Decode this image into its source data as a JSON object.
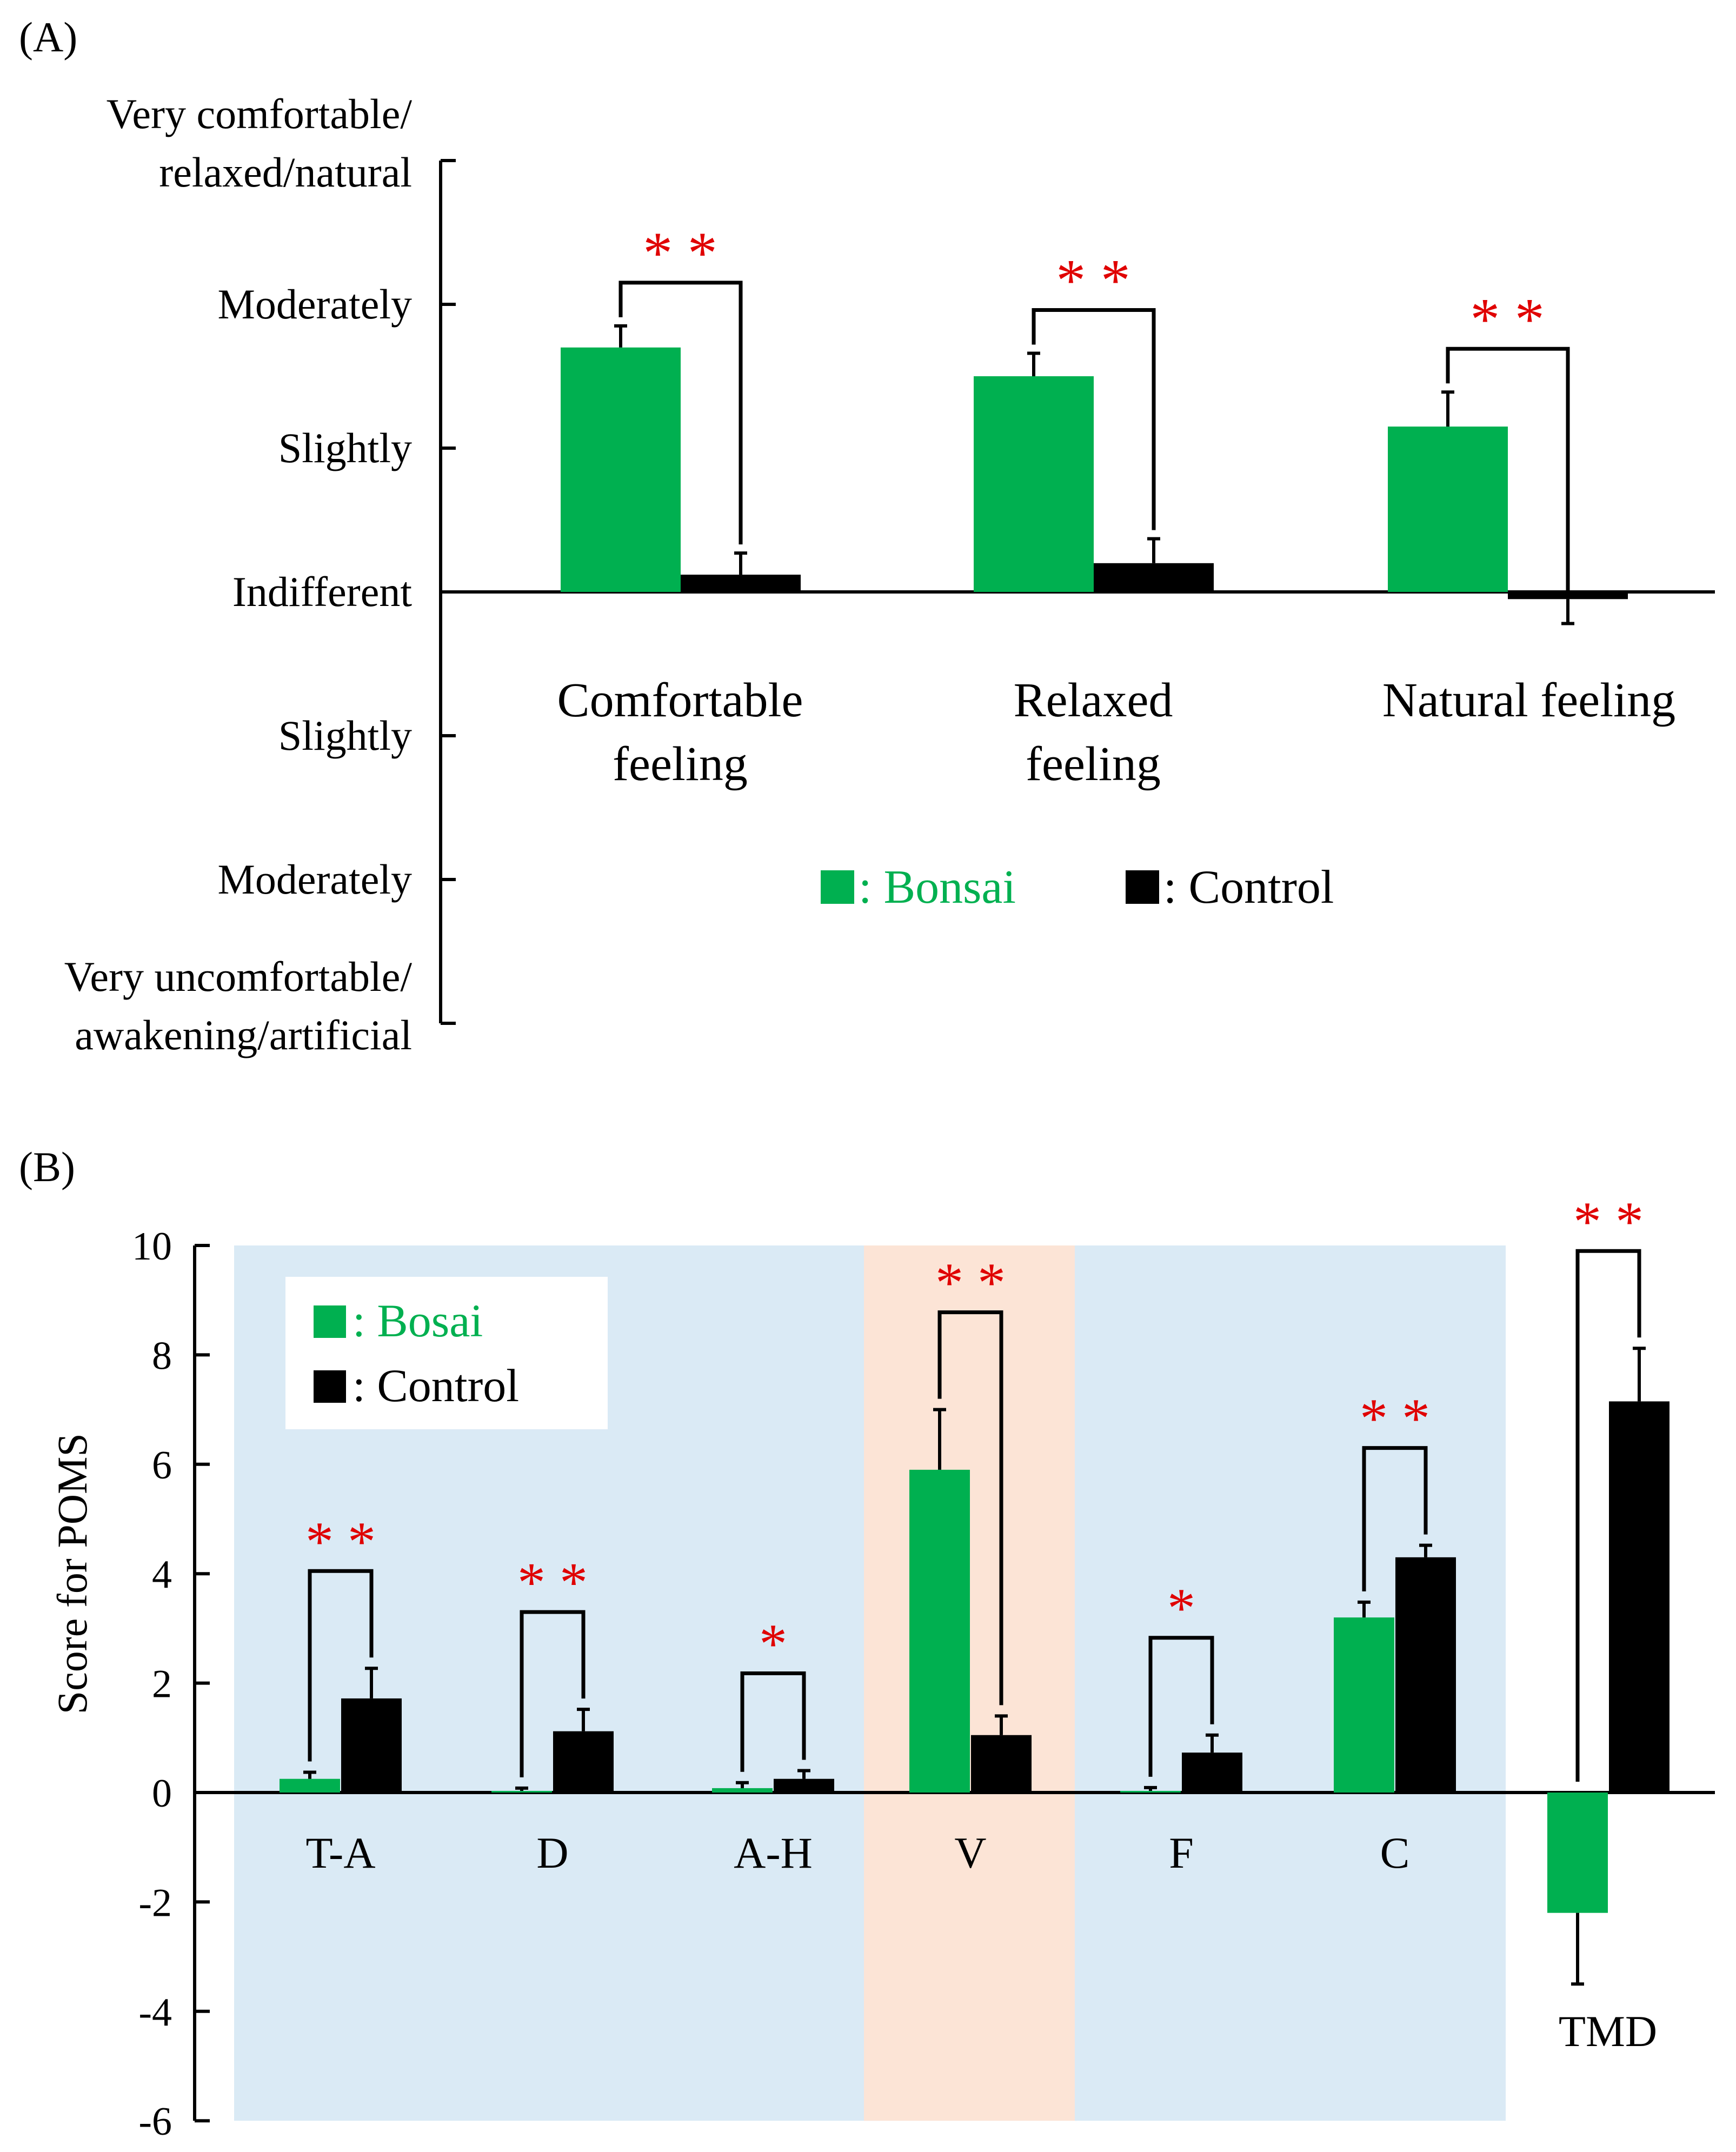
{
  "panel_a_label": "(A)",
  "panel_b_label": "(B)",
  "chart_data": [
    {
      "type": "bar",
      "panel": "(A)",
      "categories": [
        "Comfortable feeling",
        "Relaxed feeling",
        "Natural feeling"
      ],
      "category_lines": [
        [
          "Comfortable",
          "feeling"
        ],
        [
          "Relaxed",
          "feeling"
        ],
        [
          "Natural feeling"
        ]
      ],
      "series": [
        {
          "name": "Bonsai",
          "color": "#00b050",
          "values": [
            1.7,
            1.5,
            1.15
          ],
          "errors": [
            0.15,
            0.16,
            0.24
          ]
        },
        {
          "name": "Control",
          "color": "#000000",
          "values": [
            0.12,
            0.2,
            -0.05
          ],
          "errors": [
            0.15,
            0.17,
            0.17
          ]
        }
      ],
      "ylim": [
        -3,
        3
      ],
      "yticks": [
        3,
        2,
        1,
        0,
        -1,
        -2,
        -3
      ],
      "ytick_labels": [
        [
          "Very comfortable/",
          "relaxed/natural"
        ],
        [
          "Moderately"
        ],
        [
          "Slightly"
        ],
        [
          "Indifferent"
        ],
        [
          "Slightly"
        ],
        [
          "Moderately"
        ],
        [
          "Very uncomfortable/",
          "awakening/artificial"
        ]
      ],
      "significance": [
        "**",
        "**",
        "**"
      ],
      "legend": {
        "bonsai_label": ": Bonsai",
        "control_label": ": Control",
        "placement": "bottom-center"
      }
    },
    {
      "type": "bar",
      "panel": "(B)",
      "ylabel": "Score for POMS",
      "categories": [
        "T-A",
        "D",
        "A-H",
        "V",
        "F",
        "C",
        "TMD"
      ],
      "series": [
        {
          "name": "Bosai",
          "color": "#00b050",
          "values": [
            0.25,
            0.03,
            0.08,
            5.9,
            0.03,
            3.2,
            -2.2
          ],
          "errors": [
            0.12,
            0.05,
            0.1,
            1.1,
            0.06,
            0.28,
            1.3
          ]
        },
        {
          "name": "Control",
          "color": "#000000",
          "values": [
            1.72,
            1.12,
            0.25,
            1.05,
            0.73,
            4.3,
            7.15
          ],
          "errors": [
            0.55,
            0.4,
            0.15,
            0.35,
            0.32,
            0.22,
            0.97
          ]
        }
      ],
      "ylim": [
        -6,
        10
      ],
      "yticks": [
        10,
        8,
        6,
        4,
        2,
        0,
        -2,
        -4,
        -6
      ],
      "significance": [
        "**",
        "**",
        "*",
        "**",
        "*",
        "**",
        "**"
      ],
      "background_bands": [
        {
          "from_category": 0,
          "to_category": 2,
          "color": "#daeaf5"
        },
        {
          "from_category": 3,
          "to_category": 3,
          "color": "#fce4d6"
        },
        {
          "from_category": 4,
          "to_category": 5,
          "color": "#daeaf5"
        }
      ],
      "legend": {
        "bonsai_label": ": Bosai",
        "control_label": ": Control",
        "placement": "top-left"
      }
    }
  ]
}
